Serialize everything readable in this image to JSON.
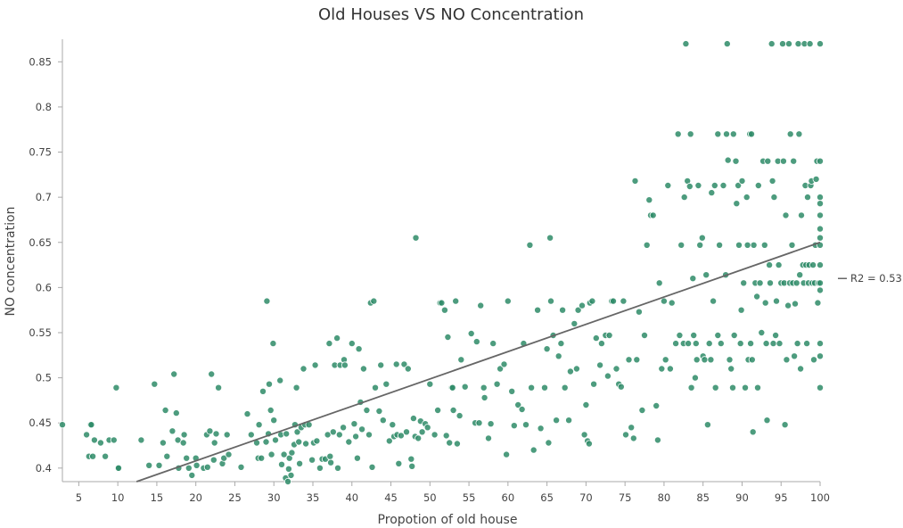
{
  "chart_data": {
    "type": "scatter",
    "title": "Old Houses VS NO Concentration",
    "xlabel": "Propotion of old house",
    "ylabel": "NO concentration",
    "xlim": [
      2.9,
      100
    ],
    "ylim": [
      0.385,
      0.875
    ],
    "x_ticks": [
      5,
      10,
      15,
      20,
      25,
      30,
      35,
      40,
      45,
      50,
      55,
      60,
      65,
      70,
      75,
      80,
      85,
      90,
      95,
      100
    ],
    "y_ticks": [
      0.4,
      0.45,
      0.5,
      0.55,
      0.6,
      0.65,
      0.7,
      0.75,
      0.8,
      0.85
    ],
    "grid": false,
    "point_color": "#2e8b67",
    "trendline": {
      "color": "#666666",
      "label": "R2 = 0.53",
      "start": [
        12.4,
        0.385
      ],
      "end": [
        100,
        0.65
      ]
    },
    "points": [
      [
        2.9,
        0.448
      ],
      [
        6.0,
        0.437
      ],
      [
        6.3,
        0.413
      ],
      [
        6.5,
        0.448
      ],
      [
        6.6,
        0.448
      ],
      [
        6.8,
        0.413
      ],
      [
        7.0,
        0.431
      ],
      [
        7.8,
        0.428
      ],
      [
        8.4,
        0.413
      ],
      [
        8.9,
        0.431
      ],
      [
        9.5,
        0.431
      ],
      [
        9.8,
        0.489
      ],
      [
        10.0,
        0.4
      ],
      [
        10.1,
        0.4
      ],
      [
        13.0,
        0.431
      ],
      [
        14.0,
        0.403
      ],
      [
        14.7,
        0.493
      ],
      [
        15.3,
        0.403
      ],
      [
        15.8,
        0.428
      ],
      [
        16.1,
        0.464
      ],
      [
        16.3,
        0.413
      ],
      [
        17.0,
        0.441
      ],
      [
        17.2,
        0.504
      ],
      [
        17.5,
        0.461
      ],
      [
        17.7,
        0.431
      ],
      [
        17.8,
        0.4
      ],
      [
        18.4,
        0.428
      ],
      [
        18.5,
        0.437
      ],
      [
        18.8,
        0.411
      ],
      [
        19.1,
        0.4
      ],
      [
        19.5,
        0.392
      ],
      [
        20.0,
        0.411
      ],
      [
        20.1,
        0.403
      ],
      [
        21.0,
        0.4
      ],
      [
        21.4,
        0.437
      ],
      [
        21.5,
        0.401
      ],
      [
        21.8,
        0.441
      ],
      [
        22.0,
        0.504
      ],
      [
        22.3,
        0.409
      ],
      [
        22.4,
        0.428
      ],
      [
        22.6,
        0.438
      ],
      [
        22.9,
        0.489
      ],
      [
        23.4,
        0.405
      ],
      [
        23.6,
        0.411
      ],
      [
        24.0,
        0.437
      ],
      [
        24.2,
        0.415
      ],
      [
        25.8,
        0.401
      ],
      [
        26.6,
        0.46
      ],
      [
        27.1,
        0.437
      ],
      [
        27.8,
        0.428
      ],
      [
        28.0,
        0.411
      ],
      [
        28.1,
        0.448
      ],
      [
        28.4,
        0.411
      ],
      [
        28.6,
        0.485
      ],
      [
        29.0,
        0.429
      ],
      [
        29.3,
        0.438
      ],
      [
        29.4,
        0.493
      ],
      [
        29.1,
        0.585
      ],
      [
        29.6,
        0.464
      ],
      [
        29.7,
        0.415
      ],
      [
        29.9,
        0.538
      ],
      [
        30.0,
        0.453
      ],
      [
        30.2,
        0.431
      ],
      [
        30.8,
        0.497
      ],
      [
        30.9,
        0.437
      ],
      [
        31.0,
        0.404
      ],
      [
        31.3,
        0.415
      ],
      [
        31.5,
        0.389
      ],
      [
        31.6,
        0.438
      ],
      [
        31.8,
        0.385
      ],
      [
        31.9,
        0.399
      ],
      [
        32.0,
        0.411
      ],
      [
        32.2,
        0.392
      ],
      [
        32.3,
        0.417
      ],
      [
        32.6,
        0.426
      ],
      [
        32.7,
        0.448
      ],
      [
        32.9,
        0.489
      ],
      [
        33.0,
        0.44
      ],
      [
        33.2,
        0.429
      ],
      [
        33.3,
        0.405
      ],
      [
        33.5,
        0.445
      ],
      [
        33.8,
        0.51
      ],
      [
        34.0,
        0.448
      ],
      [
        34.1,
        0.427
      ],
      [
        34.5,
        0.448
      ],
      [
        34.9,
        0.409
      ],
      [
        35.1,
        0.428
      ],
      [
        35.3,
        0.514
      ],
      [
        35.5,
        0.43
      ],
      [
        35.9,
        0.4
      ],
      [
        36.2,
        0.41
      ],
      [
        36.6,
        0.41
      ],
      [
        36.9,
        0.437
      ],
      [
        37.1,
        0.538
      ],
      [
        37.2,
        0.413
      ],
      [
        37.3,
        0.406
      ],
      [
        37.6,
        0.44
      ],
      [
        37.8,
        0.514
      ],
      [
        38.1,
        0.544
      ],
      [
        38.2,
        0.4
      ],
      [
        38.4,
        0.437
      ],
      [
        38.5,
        0.514
      ],
      [
        38.9,
        0.445
      ],
      [
        39.0,
        0.52
      ],
      [
        39.1,
        0.514
      ],
      [
        39.6,
        0.429
      ],
      [
        40.0,
        0.538
      ],
      [
        40.3,
        0.449
      ],
      [
        40.5,
        0.435
      ],
      [
        40.7,
        0.411
      ],
      [
        40.9,
        0.532
      ],
      [
        41.1,
        0.473
      ],
      [
        41.3,
        0.443
      ],
      [
        41.5,
        0.51
      ],
      [
        41.9,
        0.464
      ],
      [
        42.2,
        0.437
      ],
      [
        42.4,
        0.583
      ],
      [
        42.6,
        0.401
      ],
      [
        42.8,
        0.585
      ],
      [
        43.0,
        0.489
      ],
      [
        43.5,
        0.463
      ],
      [
        43.7,
        0.514
      ],
      [
        44.0,
        0.453
      ],
      [
        44.4,
        0.493
      ],
      [
        44.8,
        0.43
      ],
      [
        45.2,
        0.448
      ],
      [
        45.4,
        0.435
      ],
      [
        45.7,
        0.515
      ],
      [
        45.8,
        0.437
      ],
      [
        46.0,
        0.405
      ],
      [
        46.3,
        0.436
      ],
      [
        46.7,
        0.515
      ],
      [
        47.0,
        0.44
      ],
      [
        47.2,
        0.51
      ],
      [
        47.6,
        0.41
      ],
      [
        47.7,
        0.402
      ],
      [
        47.9,
        0.455
      ],
      [
        48.1,
        0.435
      ],
      [
        48.2,
        0.655
      ],
      [
        48.5,
        0.433
      ],
      [
        48.8,
        0.452
      ],
      [
        49.0,
        0.44
      ],
      [
        49.4,
        0.449
      ],
      [
        49.7,
        0.445
      ],
      [
        50.0,
        0.493
      ],
      [
        50.6,
        0.437
      ],
      [
        51.0,
        0.464
      ],
      [
        51.3,
        0.583
      ],
      [
        51.5,
        0.583
      ],
      [
        51.9,
        0.575
      ],
      [
        52.1,
        0.436
      ],
      [
        52.3,
        0.545
      ],
      [
        52.5,
        0.428
      ],
      [
        52.8,
        0.489
      ],
      [
        52.9,
        0.489
      ],
      [
        53.0,
        0.464
      ],
      [
        53.3,
        0.585
      ],
      [
        53.5,
        0.427
      ],
      [
        53.8,
        0.458
      ],
      [
        54.0,
        0.52
      ],
      [
        54.5,
        0.49
      ],
      [
        55.3,
        0.549
      ],
      [
        55.8,
        0.45
      ],
      [
        56.0,
        0.54
      ],
      [
        56.3,
        0.45
      ],
      [
        56.5,
        0.58
      ],
      [
        56.9,
        0.489
      ],
      [
        57.0,
        0.478
      ],
      [
        57.5,
        0.433
      ],
      [
        57.8,
        0.449
      ],
      [
        58.1,
        0.538
      ],
      [
        58.6,
        0.493
      ],
      [
        59.0,
        0.51
      ],
      [
        59.5,
        0.515
      ],
      [
        59.8,
        0.415
      ],
      [
        60.0,
        0.585
      ],
      [
        60.5,
        0.485
      ],
      [
        60.8,
        0.447
      ],
      [
        61.3,
        0.47
      ],
      [
        61.8,
        0.465
      ],
      [
        62.0,
        0.538
      ],
      [
        62.3,
        0.448
      ],
      [
        62.8,
        0.647
      ],
      [
        63.0,
        0.489
      ],
      [
        63.3,
        0.42
      ],
      [
        63.8,
        0.575
      ],
      [
        64.2,
        0.444
      ],
      [
        64.7,
        0.489
      ],
      [
        65.0,
        0.532
      ],
      [
        65.2,
        0.428
      ],
      [
        65.4,
        0.655
      ],
      [
        65.5,
        0.585
      ],
      [
        65.8,
        0.547
      ],
      [
        66.2,
        0.453
      ],
      [
        66.5,
        0.524
      ],
      [
        66.8,
        0.538
      ],
      [
        67.0,
        0.575
      ],
      [
        67.3,
        0.489
      ],
      [
        67.8,
        0.453
      ],
      [
        68.0,
        0.507
      ],
      [
        68.5,
        0.56
      ],
      [
        68.8,
        0.51
      ],
      [
        69.0,
        0.575
      ],
      [
        69.5,
        0.58
      ],
      [
        69.8,
        0.437
      ],
      [
        70.0,
        0.47
      ],
      [
        70.2,
        0.43
      ],
      [
        70.4,
        0.427
      ],
      [
        70.5,
        0.583
      ],
      [
        70.8,
        0.585
      ],
      [
        71.0,
        0.493
      ],
      [
        71.3,
        0.544
      ],
      [
        71.8,
        0.514
      ],
      [
        72.0,
        0.538
      ],
      [
        72.5,
        0.547
      ],
      [
        72.8,
        0.502
      ],
      [
        73.0,
        0.547
      ],
      [
        73.3,
        0.585
      ],
      [
        73.5,
        0.585
      ],
      [
        73.9,
        0.51
      ],
      [
        74.2,
        0.493
      ],
      [
        74.5,
        0.49
      ],
      [
        74.8,
        0.585
      ],
      [
        75.1,
        0.437
      ],
      [
        75.5,
        0.52
      ],
      [
        75.8,
        0.445
      ],
      [
        76.1,
        0.433
      ],
      [
        76.3,
        0.718
      ],
      [
        76.5,
        0.52
      ],
      [
        76.8,
        0.573
      ],
      [
        77.2,
        0.464
      ],
      [
        77.5,
        0.547
      ],
      [
        77.8,
        0.647
      ],
      [
        78.1,
        0.697
      ],
      [
        78.3,
        0.68
      ],
      [
        78.6,
        0.68
      ],
      [
        79.0,
        0.469
      ],
      [
        79.2,
        0.431
      ],
      [
        79.4,
        0.605
      ],
      [
        79.7,
        0.51
      ],
      [
        80.0,
        0.585
      ],
      [
        80.2,
        0.52
      ],
      [
        80.5,
        0.713
      ],
      [
        80.8,
        0.51
      ],
      [
        81.0,
        0.583
      ],
      [
        81.5,
        0.538
      ],
      [
        81.8,
        0.77
      ],
      [
        82.0,
        0.547
      ],
      [
        82.2,
        0.647
      ],
      [
        82.5,
        0.538
      ],
      [
        82.8,
        0.87
      ],
      [
        83.0,
        0.718
      ],
      [
        83.1,
        0.538
      ],
      [
        83.3,
        0.712
      ],
      [
        83.4,
        0.77
      ],
      [
        83.5,
        0.489
      ],
      [
        83.7,
        0.61
      ],
      [
        83.8,
        0.547
      ],
      [
        84.0,
        0.5
      ],
      [
        84.1,
        0.538
      ],
      [
        84.4,
        0.713
      ],
      [
        84.6,
        0.647
      ],
      [
        84.9,
        0.655
      ],
      [
        85.0,
        0.524
      ],
      [
        85.2,
        0.52
      ],
      [
        85.4,
        0.614
      ],
      [
        85.6,
        0.448
      ],
      [
        85.8,
        0.538
      ],
      [
        86.0,
        0.52
      ],
      [
        86.1,
        0.705
      ],
      [
        86.3,
        0.585
      ],
      [
        86.5,
        0.713
      ],
      [
        86.6,
        0.489
      ],
      [
        86.9,
        0.547
      ],
      [
        87.1,
        0.647
      ],
      [
        87.3,
        0.538
      ],
      [
        87.6,
        0.713
      ],
      [
        87.9,
        0.614
      ],
      [
        88.0,
        0.77
      ],
      [
        88.1,
        0.87
      ],
      [
        88.2,
        0.741
      ],
      [
        88.4,
        0.52
      ],
      [
        88.6,
        0.51
      ],
      [
        88.8,
        0.489
      ],
      [
        88.9,
        0.77
      ],
      [
        89.0,
        0.547
      ],
      [
        89.2,
        0.74
      ],
      [
        89.3,
        0.693
      ],
      [
        89.5,
        0.713
      ],
      [
        89.6,
        0.647
      ],
      [
        89.8,
        0.538
      ],
      [
        89.9,
        0.575
      ],
      [
        90.0,
        0.718
      ],
      [
        90.2,
        0.605
      ],
      [
        90.4,
        0.489
      ],
      [
        90.6,
        0.7
      ],
      [
        90.8,
        0.52
      ],
      [
        91.0,
        0.77
      ],
      [
        91.1,
        0.538
      ],
      [
        91.2,
        0.77
      ],
      [
        91.3,
        0.52
      ],
      [
        91.5,
        0.647
      ],
      [
        91.7,
        0.605
      ],
      [
        91.9,
        0.59
      ],
      [
        92.0,
        0.489
      ],
      [
        92.1,
        0.713
      ],
      [
        92.3,
        0.605
      ],
      [
        92.5,
        0.55
      ],
      [
        92.7,
        0.74
      ],
      [
        92.9,
        0.647
      ],
      [
        93.0,
        0.583
      ],
      [
        93.1,
        0.538
      ],
      [
        93.2,
        0.453
      ],
      [
        93.3,
        0.74
      ],
      [
        93.5,
        0.625
      ],
      [
        93.6,
        0.605
      ],
      [
        93.8,
        0.87
      ],
      [
        93.9,
        0.718
      ],
      [
        94.0,
        0.538
      ],
      [
        94.1,
        0.7
      ],
      [
        94.3,
        0.547
      ],
      [
        94.4,
        0.585
      ],
      [
        94.6,
        0.74
      ],
      [
        94.8,
        0.538
      ],
      [
        95.0,
        0.605
      ],
      [
        95.2,
        0.87
      ],
      [
        95.3,
        0.74
      ],
      [
        95.4,
        0.605
      ],
      [
        95.5,
        0.448
      ],
      [
        95.6,
        0.68
      ],
      [
        95.7,
        0.52
      ],
      [
        95.9,
        0.58
      ],
      [
        96.0,
        0.87
      ],
      [
        96.1,
        0.605
      ],
      [
        96.2,
        0.77
      ],
      [
        96.4,
        0.647
      ],
      [
        96.5,
        0.605
      ],
      [
        96.6,
        0.74
      ],
      [
        96.7,
        0.524
      ],
      [
        96.8,
        0.582
      ],
      [
        97.0,
        0.605
      ],
      [
        97.2,
        0.87
      ],
      [
        97.3,
        0.77
      ],
      [
        97.4,
        0.614
      ],
      [
        97.5,
        0.51
      ],
      [
        97.6,
        0.68
      ],
      [
        97.8,
        0.625
      ],
      [
        97.9,
        0.605
      ],
      [
        98.0,
        0.87
      ],
      [
        98.1,
        0.713
      ],
      [
        98.2,
        0.625
      ],
      [
        98.3,
        0.538
      ],
      [
        98.4,
        0.7
      ],
      [
        98.5,
        0.605
      ],
      [
        98.6,
        0.625
      ],
      [
        98.7,
        0.87
      ],
      [
        98.8,
        0.713
      ],
      [
        98.9,
        0.718
      ],
      [
        99.0,
        0.605
      ],
      [
        99.1,
        0.625
      ],
      [
        99.2,
        0.52
      ],
      [
        99.3,
        0.605
      ],
      [
        99.4,
        0.647
      ],
      [
        99.5,
        0.72
      ],
      [
        99.6,
        0.74
      ],
      [
        99.7,
        0.583
      ],
      [
        99.8,
        0.605
      ],
      [
        100.0,
        0.87
      ],
      [
        100.0,
        0.74
      ],
      [
        100.0,
        0.7
      ],
      [
        100.0,
        0.693
      ],
      [
        100.0,
        0.68
      ],
      [
        100.0,
        0.665
      ],
      [
        100.0,
        0.655
      ],
      [
        100.0,
        0.647
      ],
      [
        100.0,
        0.625
      ],
      [
        100.0,
        0.605
      ],
      [
        100.0,
        0.597
      ],
      [
        100.0,
        0.538
      ],
      [
        100.0,
        0.524
      ],
      [
        100.0,
        0.489
      ],
      [
        86.9,
        0.77
      ],
      [
        82.6,
        0.7
      ],
      [
        84.2,
        0.52
      ],
      [
        90.7,
        0.647
      ],
      [
        94.7,
        0.625
      ],
      [
        97.1,
        0.538
      ],
      [
        91.4,
        0.44
      ]
    ]
  }
}
